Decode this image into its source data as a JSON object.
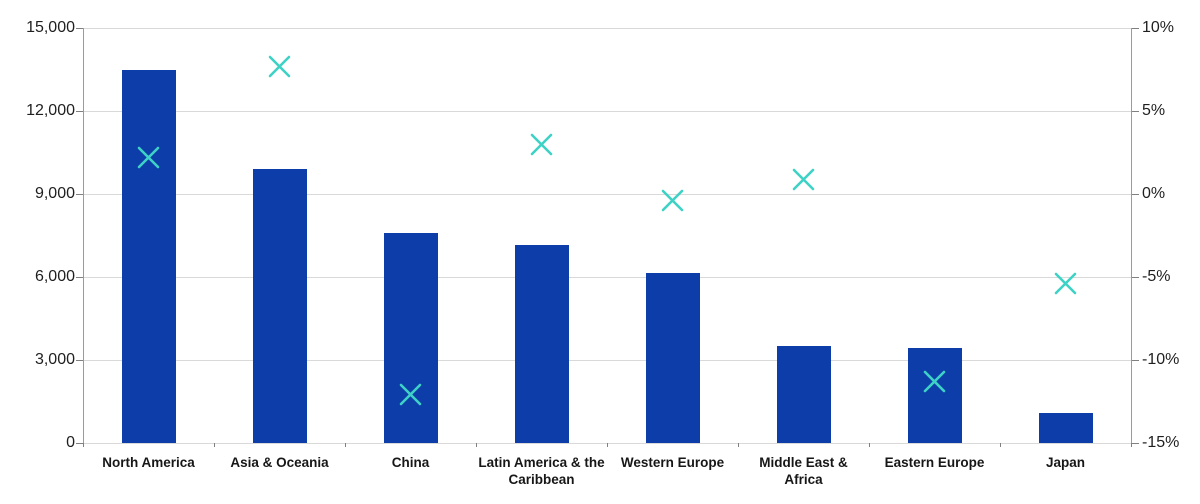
{
  "chart_data": {
    "type": "bar",
    "subtype": "bar-with-x-scatter-secondary-axis",
    "grid": true,
    "legend": "none",
    "categories": [
      "North America",
      "Asia & Oceania",
      "China",
      "Latin America & the Caribbean",
      "Western Europe",
      "Middle East & Africa",
      "Eastern Europe",
      "Japan"
    ],
    "category_label_lines": [
      [
        "North America"
      ],
      [
        "Asia & Oceania"
      ],
      [
        "China"
      ],
      [
        "Latin America & the",
        "Caribbean"
      ],
      [
        "Western Europe"
      ],
      [
        "Middle East &",
        "Africa"
      ],
      [
        "Eastern Europe"
      ],
      [
        "Japan"
      ]
    ],
    "series": [
      {
        "name": "level-bars",
        "type": "bar",
        "axis": "left",
        "color": "#0c3da8",
        "values": [
          13500,
          9900,
          7600,
          7150,
          6150,
          3500,
          3450,
          1100
        ]
      },
      {
        "name": "percent-change-markers",
        "type": "scatter",
        "marker": "x",
        "axis": "right",
        "color": "#3ed2c6",
        "values": [
          2.2,
          7.7,
          -12.1,
          3.0,
          -0.4,
          0.9,
          -11.3,
          -5.4
        ]
      }
    ],
    "left_axis": {
      "min": 0,
      "max": 15000,
      "step": 3000,
      "tick_labels": [
        "0",
        "3,000",
        "6,000",
        "9,000",
        "12,000",
        "15,000"
      ]
    },
    "right_axis": {
      "min": -15,
      "max": 10,
      "step": 5,
      "tick_labels": [
        "-15%",
        "-10%",
        "-5%",
        "0%",
        "5%",
        "10%"
      ]
    }
  },
  "colors": {
    "bar": "#0c3da8",
    "marker": "#3ed2c6",
    "gridline": "#d9d9d9",
    "axis_line": "#9b9b9b",
    "tick": "#808080",
    "text": "#1f1f1f"
  }
}
